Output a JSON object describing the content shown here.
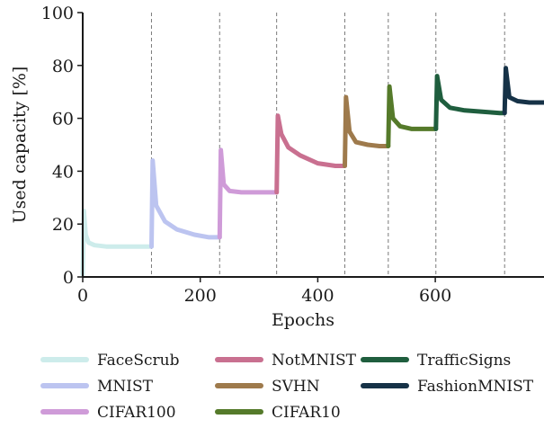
{
  "chart_data": {
    "type": "line",
    "title": "",
    "xlabel": "Epochs",
    "ylabel": "Used capacity [%]",
    "xlim": [
      0,
      785
    ],
    "ylim": [
      0,
      100
    ],
    "x_ticks": [
      0,
      200,
      400,
      600
    ],
    "y_ticks": [
      0,
      20,
      40,
      60,
      80,
      100
    ],
    "grid": false,
    "task_boundaries": [
      117,
      233,
      330,
      446,
      520,
      601,
      718
    ],
    "legend_position": "bottom",
    "series": [
      {
        "name": "FaceScrub",
        "color": "#cdeceb",
        "x": [
          0,
          2,
          5,
          10,
          20,
          40,
          70,
          100,
          117
        ],
        "values": [
          1,
          25,
          16,
          13,
          12,
          11.5,
          11.5,
          11.5,
          11.5
        ]
      },
      {
        "name": "MNIST",
        "color": "#bcc4f0",
        "x": [
          117,
          119,
          125,
          140,
          160,
          190,
          215,
          233
        ],
        "values": [
          11.5,
          44,
          27,
          21,
          18,
          16,
          15,
          15
        ]
      },
      {
        "name": "CIFAR100",
        "color": "#cf9bd8",
        "x": [
          233,
          235,
          240,
          250,
          270,
          300,
          320,
          330
        ],
        "values": [
          15,
          48,
          35,
          32.5,
          32,
          32,
          32,
          32
        ]
      },
      {
        "name": "NotMNIST",
        "color": "#c97090",
        "x": [
          330,
          332,
          338,
          350,
          370,
          400,
          430,
          446
        ],
        "values": [
          32,
          61,
          54,
          49,
          46,
          43,
          42,
          42
        ]
      },
      {
        "name": "SVHN",
        "color": "#9e7a4c",
        "x": [
          446,
          448,
          454,
          465,
          485,
          505,
          520
        ],
        "values": [
          42,
          68,
          55,
          51,
          50,
          49.5,
          49.5
        ]
      },
      {
        "name": "CIFAR10",
        "color": "#557a2a",
        "x": [
          520,
          522,
          528,
          540,
          560,
          585,
          601
        ],
        "values": [
          49.5,
          72,
          60,
          57,
          56,
          56,
          56
        ]
      },
      {
        "name": "TrafficSigns",
        "color": "#1f5e3e",
        "x": [
          601,
          603,
          610,
          625,
          650,
          680,
          710,
          718
        ],
        "values": [
          56,
          76,
          67,
          64,
          63,
          62.5,
          62,
          62
        ]
      },
      {
        "name": "FashionMNIST",
        "color": "#163247",
        "x": [
          718,
          720,
          726,
          740,
          760,
          785
        ],
        "values": [
          62,
          79,
          68,
          66.5,
          66,
          66
        ]
      }
    ]
  }
}
